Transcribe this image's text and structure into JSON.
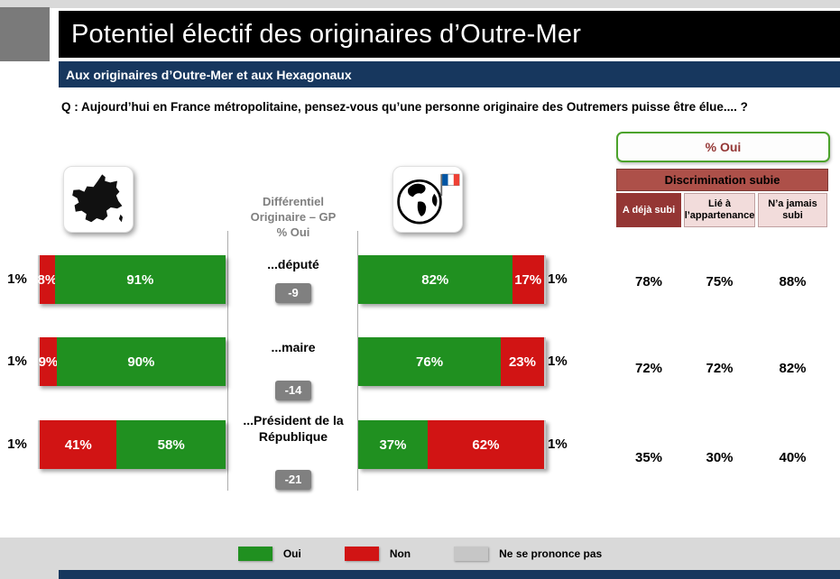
{
  "header": {
    "title": "Potentiel électif des originaires d’Outre-Mer",
    "subtitle": "Aux originaires d’Outre-Mer et aux Hexagonaux"
  },
  "question": "Q : Aujourd’hui en France métropolitaine, pensez-vous qu’une personne originaire des Outremers puisse être élue.... ?",
  "oui_panel": {
    "title": "% Oui",
    "header": "Discrimination subie",
    "columns": [
      "A déjà subi",
      "Lié à l’appartenance",
      "N’a jamais subi"
    ]
  },
  "diff_header": {
    "lines": [
      "Différentiel",
      "Originaire – GP",
      "% Oui"
    ]
  },
  "icons": {
    "left_group": "france-map-icon",
    "right_group": "globe-with-french-flag-icon"
  },
  "rows": [
    {
      "label": "...député",
      "diff": "-9",
      "left": {
        "outside": "1%",
        "w_nsp": 1,
        "non": "8%",
        "w_non": 8,
        "oui": "91%",
        "w_oui": 91
      },
      "right": {
        "oui": "82%",
        "w_oui": 82,
        "non": "17%",
        "w_non": 17,
        "w_nsp": 1,
        "outside": "1%"
      },
      "oui_cols": [
        "78%",
        "75%",
        "88%"
      ]
    },
    {
      "label": "...maire",
      "diff": "-14",
      "left": {
        "outside": "1%",
        "w_nsp": 1,
        "non": "9%",
        "w_non": 9,
        "oui": "90%",
        "w_oui": 90
      },
      "right": {
        "oui": "76%",
        "w_oui": 76,
        "non": "23%",
        "w_non": 23,
        "w_nsp": 1,
        "outside": "1%"
      },
      "oui_cols": [
        "72%",
        "72%",
        "82%"
      ]
    },
    {
      "label": "...Président de la République",
      "diff": "-21",
      "left": {
        "outside": "1%",
        "w_nsp": 1,
        "non": "41%",
        "w_non": 41,
        "oui": "58%",
        "w_oui": 58
      },
      "right": {
        "oui": "37%",
        "w_oui": 37,
        "non": "62%",
        "w_non": 62,
        "w_nsp": 1,
        "outside": "1%"
      },
      "oui_cols": [
        "35%",
        "30%",
        "40%"
      ]
    }
  ],
  "legend": {
    "items": [
      {
        "label": "Oui",
        "color": "#209020"
      },
      {
        "label": "Non",
        "color": "#d11414"
      },
      {
        "label": "Ne se prononce pas",
        "color": "#c6c6c6"
      }
    ]
  },
  "colors": {
    "oui": "#209020",
    "non": "#d11414",
    "nsp": "#c6c6c6",
    "navy": "#17375e",
    "corner_gray": "#7a7a7a",
    "band_gray": "#d9d9d9",
    "brick": "#ad5049",
    "dark_red": "#943634",
    "pink": "#f2dcdb",
    "oui_border": "#4ca32c",
    "badge_gray": "#808080",
    "diff_gray": "#7f7f7f"
  },
  "chart_data": {
    "type": "bar",
    "orientation": "horizontal-stacked",
    "title": "Potentiel électif des originaires d’Outre-Mer",
    "categories": [
      "...député",
      "...maire",
      "...Président de la République"
    ],
    "groups": [
      {
        "name": "Hexagonaux (carte de France)",
        "segment_order": [
          "Ne se prononce pas",
          "Non",
          "Oui"
        ],
        "rows": [
          {
            "nsp": 1,
            "non": 8,
            "oui": 91
          },
          {
            "nsp": 1,
            "non": 9,
            "oui": 90
          },
          {
            "nsp": 1,
            "non": 41,
            "oui": 58
          }
        ]
      },
      {
        "name": "Originaires d’Outre-Mer (globe + drapeau)",
        "segment_order": [
          "Oui",
          "Non",
          "Ne se prononce pas"
        ],
        "rows": [
          {
            "oui": 82,
            "non": 17,
            "nsp": 1
          },
          {
            "oui": 76,
            "non": 23,
            "nsp": 1
          },
          {
            "oui": 37,
            "non": 62,
            "nsp": 1
          }
        ]
      }
    ],
    "differential_originaire_gp_pct_oui": [
      -9,
      -14,
      -21
    ],
    "pct_oui_by_discrimination": {
      "columns": [
        "A déjà subi",
        "Lié à l’appartenance",
        "N’a jamais subi"
      ],
      "rows": [
        [
          78,
          75,
          88
        ],
        [
          72,
          72,
          82
        ],
        [
          35,
          30,
          40
        ]
      ]
    },
    "legend": [
      "Oui",
      "Non",
      "Ne se prononce pas"
    ],
    "axis_range": [
      0,
      100
    ],
    "grid": false
  }
}
